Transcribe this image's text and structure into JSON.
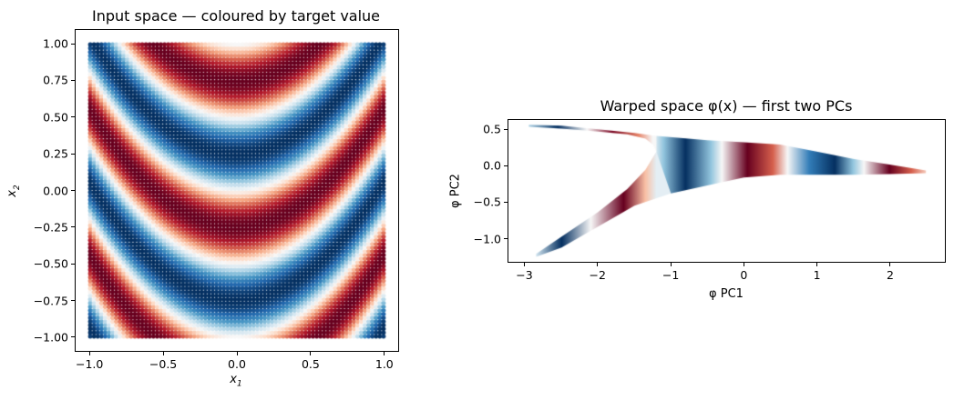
{
  "chart_data": [
    {
      "type": "scatter",
      "title": "Input space — coloured by target value",
      "xlabel": "x1",
      "ylabel": "x2",
      "xlim": [
        -1.1,
        1.1
      ],
      "ylim": [
        -1.1,
        1.1
      ],
      "xticks": [
        "−1.0",
        "−0.5",
        "0.0",
        "0.5",
        "1.0"
      ],
      "xtick_values": [
        -1.0,
        -0.5,
        0.0,
        0.5,
        1.0
      ],
      "yticks": [
        "1.00",
        "0.75",
        "0.50",
        "0.25",
        "0.00",
        "−0.25",
        "−0.50",
        "−0.75",
        "−1.00"
      ],
      "ytick_values": [
        1.0,
        0.75,
        0.5,
        0.25,
        0.0,
        -0.25,
        -0.5,
        -0.75,
        -1.0
      ],
      "grid": false,
      "colormap": "RdBu",
      "points": {
        "grid_n": 80,
        "x_range": [
          -1,
          1
        ],
        "y_range": [
          -1,
          1
        ]
      },
      "target_function": "sin(2*pi*(x2 - 0.8*x1^2))",
      "description": "Parabolic (U-shaped) alternating red/blue bands, ~1 unit period along x2"
    },
    {
      "type": "scatter",
      "title": "Warped space φ(x) — first two PCs",
      "xlabel": "φ PC1",
      "ylabel": "φ PC2",
      "xlim": [
        -3.23,
        2.76
      ],
      "ylim": [
        -1.33,
        0.64
      ],
      "xticks": [
        "−3",
        "−2",
        "−1",
        "0",
        "1",
        "2"
      ],
      "xtick_values": [
        -3,
        -2,
        -1,
        0,
        1,
        2
      ],
      "yticks": [
        "0.5",
        "0.0",
        "−0.5",
        "−1.0"
      ],
      "ytick_values": [
        0.5,
        0.0,
        -0.5,
        -1.0
      ],
      "grid": false,
      "colormap": "RdBu",
      "regions": [
        {
          "name": "upper-arm",
          "top": [
            [
              -2.95,
              0.575
            ],
            [
              -2.5,
              0.56
            ],
            [
              -2.0,
              0.51
            ],
            [
              -1.5,
              0.46
            ],
            [
              -1.2,
              0.42
            ]
          ],
          "bottom": [
            [
              -2.95,
              0.545
            ],
            [
              -2.5,
              0.52
            ],
            [
              -2.0,
              0.48
            ],
            [
              -1.6,
              0.44
            ],
            [
              -1.35,
              0.38
            ],
            [
              -1.25,
              0.3
            ],
            [
              -1.2,
              0.2
            ]
          ]
        },
        {
          "name": "lower-arm",
          "top": [
            [
              -2.85,
              -1.22
            ],
            [
              -2.5,
              -0.98
            ],
            [
              -2.0,
              -0.64
            ],
            [
              -1.6,
              -0.32
            ],
            [
              -1.35,
              -0.05
            ],
            [
              -1.2,
              0.2
            ]
          ],
          "bottom": [
            [
              -2.85,
              -1.26
            ],
            [
              -2.5,
              -1.13
            ],
            [
              -2.0,
              -0.84
            ],
            [
              -1.5,
              -0.55
            ],
            [
              -1.0,
              -0.38
            ],
            [
              -0.6,
              -0.28
            ]
          ]
        },
        {
          "name": "body",
          "top": [
            [
              -1.2,
              0.42
            ],
            [
              -0.5,
              0.36
            ],
            [
              0,
              0.33
            ],
            [
              0.5,
              0.3
            ],
            [
              1.0,
              0.2
            ],
            [
              1.5,
              0.1
            ],
            [
              2.0,
              0.02
            ],
            [
              2.5,
              -0.06
            ]
          ],
          "bottom": [
            [
              -1.2,
              0.2
            ],
            [
              -1.0,
              -0.38
            ],
            [
              -0.5,
              -0.27
            ],
            [
              0,
              -0.16
            ],
            [
              0.5,
              -0.12
            ],
            [
              1.0,
              -0.12
            ],
            [
              1.5,
              -0.12
            ],
            [
              2.0,
              -0.11
            ],
            [
              2.5,
              -0.1
            ]
          ]
        }
      ],
      "value_along_pc1": {
        "upper-arm": [
          [
            -2.95,
            0.3
          ],
          [
            -2.55,
            1
          ],
          [
            -2.15,
            0
          ],
          [
            -1.8,
            -0.95
          ],
          [
            -1.45,
            -0.5
          ],
          [
            -1.25,
            0
          ]
        ],
        "lower-arm": [
          [
            -2.85,
            0.2
          ],
          [
            -2.5,
            1
          ],
          [
            -2.1,
            0
          ],
          [
            -1.65,
            -1
          ],
          [
            -1.35,
            -0.3
          ],
          [
            -1.2,
            0.1
          ]
        ],
        "body": [
          [
            -1.25,
            0
          ],
          [
            -1.1,
            0.4
          ],
          [
            -0.8,
            1
          ],
          [
            -0.45,
            0.4
          ],
          [
            -0.3,
            0
          ],
          [
            0.05,
            -1
          ],
          [
            0.4,
            -0.6
          ],
          [
            0.6,
            0
          ],
          [
            0.9,
            0.7
          ],
          [
            1.25,
            1
          ],
          [
            1.5,
            0.4
          ],
          [
            1.65,
            0
          ],
          [
            2.0,
            -1
          ],
          [
            2.3,
            -0.6
          ],
          [
            2.55,
            -0.15
          ]
        ]
      }
    }
  ]
}
